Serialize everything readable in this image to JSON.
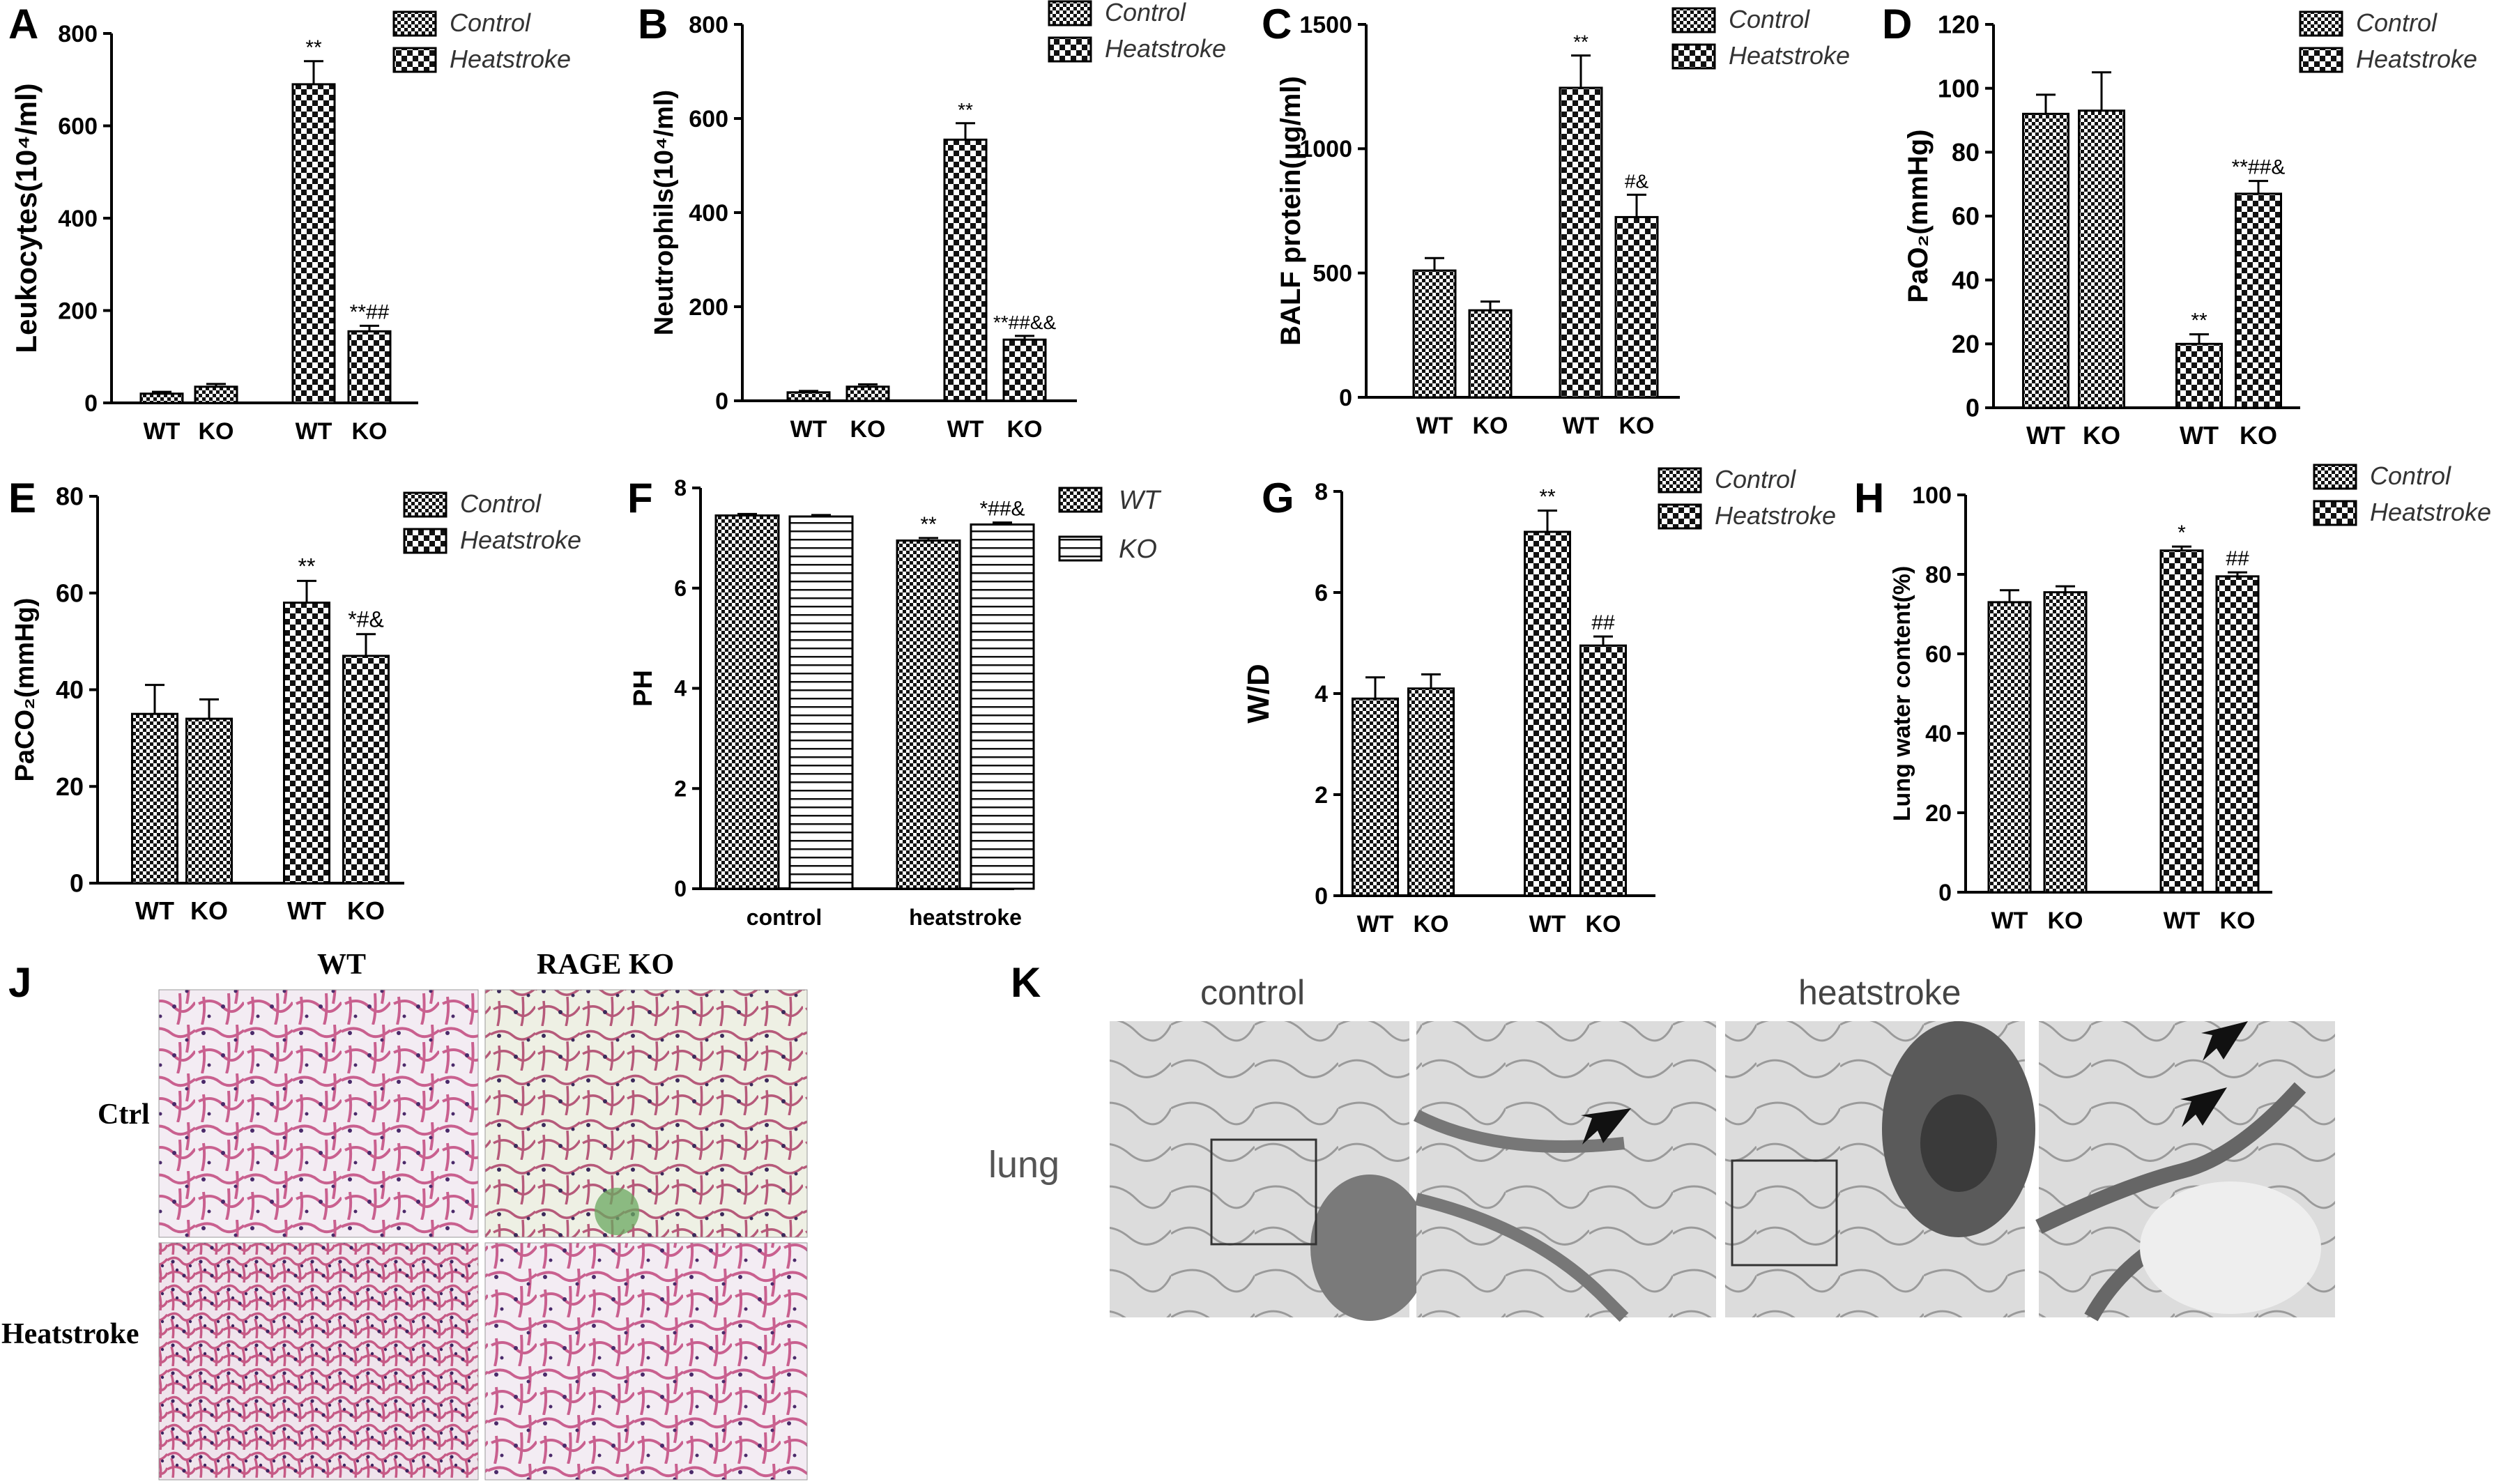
{
  "panels": {
    "A": {
      "label": "A"
    },
    "B": {
      "label": "B"
    },
    "C": {
      "label": "C"
    },
    "D": {
      "label": "D"
    },
    "E": {
      "label": "E"
    },
    "F": {
      "label": "F"
    },
    "G": {
      "label": "G"
    },
    "H": {
      "label": "H"
    },
    "J": {
      "label": "J"
    },
    "K": {
      "label": "K"
    }
  },
  "histology": {
    "columns": [
      "WT",
      "RAGE KO"
    ],
    "rows": [
      "Ctrl",
      "Heatstroke"
    ]
  },
  "em": {
    "titles": [
      "control",
      "heatstroke"
    ],
    "side_label": "lung"
  },
  "colors": {
    "he_background": "#f4eef4",
    "he_tissue": "#c25a8a",
    "he_nuclei": "#4a2a6a",
    "em_background": "#d8d8d8",
    "em_dark": "#555555"
  },
  "chart_data": [
    {
      "panel": "A",
      "type": "bar",
      "categories": [
        "WT",
        "KO",
        "WT",
        "KO"
      ],
      "series": [
        {
          "name": "Control",
          "pattern": "fine-checker"
        },
        {
          "name": "Heatstroke",
          "pattern": "coarse-checker"
        }
      ],
      "values": [
        20,
        35,
        690,
        155
      ],
      "errors": [
        4,
        6,
        50,
        12
      ],
      "group": [
        "Control",
        "Control",
        "Heatstroke",
        "Heatstroke"
      ],
      "annotations": [
        "",
        "",
        "**",
        "**##"
      ],
      "ylabel": "Leukocytes(10⁴/ml)",
      "yticks": [
        0,
        200,
        400,
        600,
        800
      ],
      "ylim": [
        0,
        800
      ]
    },
    {
      "panel": "B",
      "type": "bar",
      "categories": [
        "WT",
        "KO",
        "WT",
        "KO"
      ],
      "series": [
        {
          "name": "Control",
          "pattern": "fine-checker"
        },
        {
          "name": "Heatstroke",
          "pattern": "coarse-checker"
        }
      ],
      "values": [
        18,
        30,
        555,
        130
      ],
      "errors": [
        3,
        5,
        35,
        8
      ],
      "group": [
        "Control",
        "Control",
        "Heatstroke",
        "Heatstroke"
      ],
      "annotations": [
        "",
        "",
        "**",
        "**##&&"
      ],
      "ylabel": "Neutrophils(10⁴/ml)",
      "yticks": [
        0,
        200,
        400,
        600,
        800
      ],
      "ylim": [
        0,
        800
      ]
    },
    {
      "panel": "C",
      "type": "bar",
      "categories": [
        "WT",
        "KO",
        "WT",
        "KO"
      ],
      "series": [
        {
          "name": "Control",
          "pattern": "fine-checker"
        },
        {
          "name": "Heatstroke",
          "pattern": "coarse-checker"
        }
      ],
      "values": [
        510,
        350,
        1245,
        725
      ],
      "errors": [
        50,
        35,
        130,
        90
      ],
      "group": [
        "Control",
        "Control",
        "Heatstroke",
        "Heatstroke"
      ],
      "annotations": [
        "",
        "",
        "**",
        "#&"
      ],
      "ylabel": "BALF protein(μg/ml)",
      "yticks": [
        0,
        500,
        1000,
        1500
      ],
      "ylim": [
        0,
        1500
      ]
    },
    {
      "panel": "D",
      "type": "bar",
      "categories": [
        "WT",
        "KO",
        "WT",
        "KO"
      ],
      "series": [
        {
          "name": "Control",
          "pattern": "fine-checker"
        },
        {
          "name": "Heatstroke",
          "pattern": "coarse-checker"
        }
      ],
      "values": [
        92,
        93,
        20,
        67
      ],
      "errors": [
        6,
        12,
        3,
        4
      ],
      "group": [
        "Control",
        "Control",
        "Heatstroke",
        "Heatstroke"
      ],
      "annotations": [
        "",
        "",
        "**",
        "**##&"
      ],
      "ylabel": "PaO₂(mmHg)",
      "yticks": [
        0,
        20,
        40,
        60,
        80,
        100,
        120
      ],
      "ylim": [
        0,
        120
      ]
    },
    {
      "panel": "E",
      "type": "bar",
      "categories": [
        "WT",
        "KO",
        "WT",
        "KO"
      ],
      "series": [
        {
          "name": "Control",
          "pattern": "fine-checker"
        },
        {
          "name": "Heatstroke",
          "pattern": "coarse-checker"
        }
      ],
      "values": [
        35,
        34,
        58,
        47
      ],
      "errors": [
        6,
        4,
        4.5,
        4.5
      ],
      "group": [
        "Control",
        "Control",
        "Heatstroke",
        "Heatstroke"
      ],
      "annotations": [
        "",
        "",
        "**",
        "*#&"
      ],
      "ylabel": "PaCO₂(mmHg)",
      "yticks": [
        0,
        20,
        40,
        60,
        80
      ],
      "ylim": [
        0,
        80
      ]
    },
    {
      "panel": "F",
      "type": "bar",
      "categories": [
        "control",
        "heatstroke"
      ],
      "series": [
        {
          "name": "WT",
          "pattern": "fine-checker",
          "values": [
            7.45,
            6.95
          ],
          "errors": [
            0.03,
            0.05
          ],
          "annotations": [
            "",
            "**"
          ]
        },
        {
          "name": "KO",
          "pattern": "horizontal-lines",
          "values": [
            7.43,
            7.27
          ],
          "errors": [
            0.03,
            0.04
          ],
          "annotations": [
            "",
            "*##&"
          ]
        }
      ],
      "ylabel": "PH",
      "yticks": [
        0,
        2,
        4,
        6,
        8
      ],
      "ylim": [
        0,
        8
      ]
    },
    {
      "panel": "G",
      "type": "bar",
      "categories": [
        "WT",
        "KO",
        "WT",
        "KO"
      ],
      "series": [
        {
          "name": "Control",
          "pattern": "fine-checker"
        },
        {
          "name": "Heatstroke",
          "pattern": "coarse-checker"
        }
      ],
      "values": [
        3.9,
        4.1,
        7.2,
        4.95
      ],
      "errors": [
        0.42,
        0.28,
        0.42,
        0.18
      ],
      "group": [
        "Control",
        "Control",
        "Heatstroke",
        "Heatstroke"
      ],
      "annotations": [
        "",
        "",
        "**",
        "##"
      ],
      "ylabel": "W/D",
      "yticks": [
        0,
        2,
        4,
        6,
        8
      ],
      "ylim": [
        0,
        8
      ]
    },
    {
      "panel": "H",
      "type": "bar",
      "categories": [
        "WT",
        "KO",
        "WT",
        "KO"
      ],
      "series": [
        {
          "name": "Control",
          "pattern": "fine-checker"
        },
        {
          "name": "Heatstroke",
          "pattern": "coarse-checker"
        }
      ],
      "values": [
        73,
        75.5,
        86,
        79.5
      ],
      "errors": [
        3,
        1.5,
        1,
        1
      ],
      "group": [
        "Control",
        "Control",
        "Heatstroke",
        "Heatstroke"
      ],
      "annotations": [
        "",
        "",
        "*",
        "##"
      ],
      "ylabel": "Lung water content(%)",
      "yticks": [
        0,
        20,
        40,
        60,
        80,
        100
      ],
      "ylim": [
        0,
        100
      ]
    }
  ]
}
